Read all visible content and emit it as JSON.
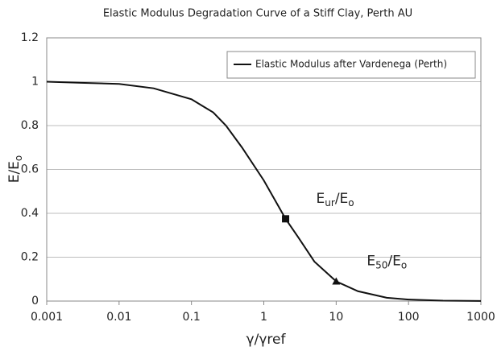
{
  "chart_data": {
    "type": "line",
    "title": "Elastic Modulus Degradation Curve of a Stiff Clay, Perth AU",
    "xlabel": "γ/γref",
    "ylabel": [
      "E/E",
      "o"
    ],
    "xscale": "log",
    "xlim": [
      0.001,
      1000
    ],
    "xticks": [
      0.001,
      0.01,
      0.1,
      1,
      10,
      100,
      1000
    ],
    "ylim": [
      0,
      1.2
    ],
    "yticks": [
      0,
      0.2,
      0.4,
      0.6,
      0.8,
      1,
      1.2
    ],
    "grid": true,
    "legend": "upper right",
    "series": [
      {
        "name": "Elastic Modulus after Vardenega (Perth)",
        "color": "#111111",
        "x": [
          0.001,
          0.003,
          0.01,
          0.03,
          0.1,
          0.2,
          0.3,
          0.5,
          1,
          2,
          3,
          5,
          10,
          20,
          50,
          100,
          300,
          1000
        ],
        "values": [
          1.0,
          0.995,
          0.99,
          0.97,
          0.92,
          0.86,
          0.8,
          0.7,
          0.55,
          0.375,
          0.29,
          0.18,
          0.09,
          0.045,
          0.015,
          0.007,
          0.002,
          0.0005
        ]
      }
    ],
    "markers": [
      {
        "shape": "square",
        "x": 2,
        "y": 0.375,
        "label": [
          "E",
          "ur",
          "/E",
          "o"
        ]
      },
      {
        "shape": "triangle",
        "x": 10,
        "y": 0.09,
        "label": [
          "E",
          "50",
          "/E",
          "o"
        ]
      }
    ]
  }
}
